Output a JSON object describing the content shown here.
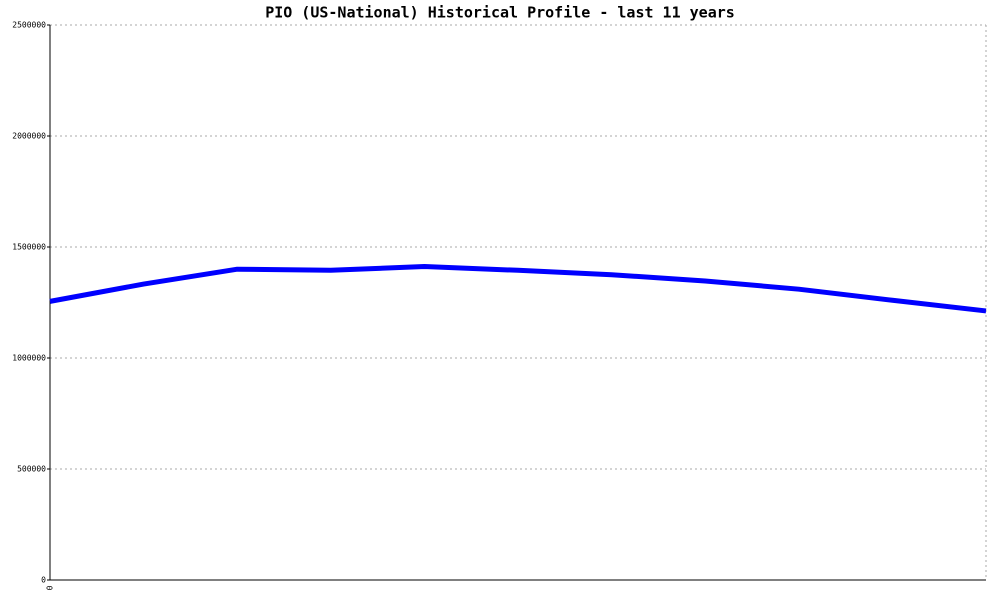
{
  "chart_data": {
    "type": "line",
    "title": "PIO (US-National) Historical Profile - last 11 years",
    "categories": [
      "0",
      null,
      null,
      null,
      null,
      null,
      null,
      null,
      null,
      null,
      null
    ],
    "series": [
      {
        "name": "PIO",
        "color": "#0000ff",
        "values": [
          1255000,
          1333000,
          1400000,
          1395000,
          1412000,
          1395000,
          1375000,
          1347000,
          1310000,
          1260000,
          1212000
        ]
      }
    ],
    "ylim": [
      0,
      2500000
    ],
    "yticks": [
      0,
      500000,
      1000000,
      1500000,
      2000000,
      2500000
    ],
    "grid": true
  }
}
